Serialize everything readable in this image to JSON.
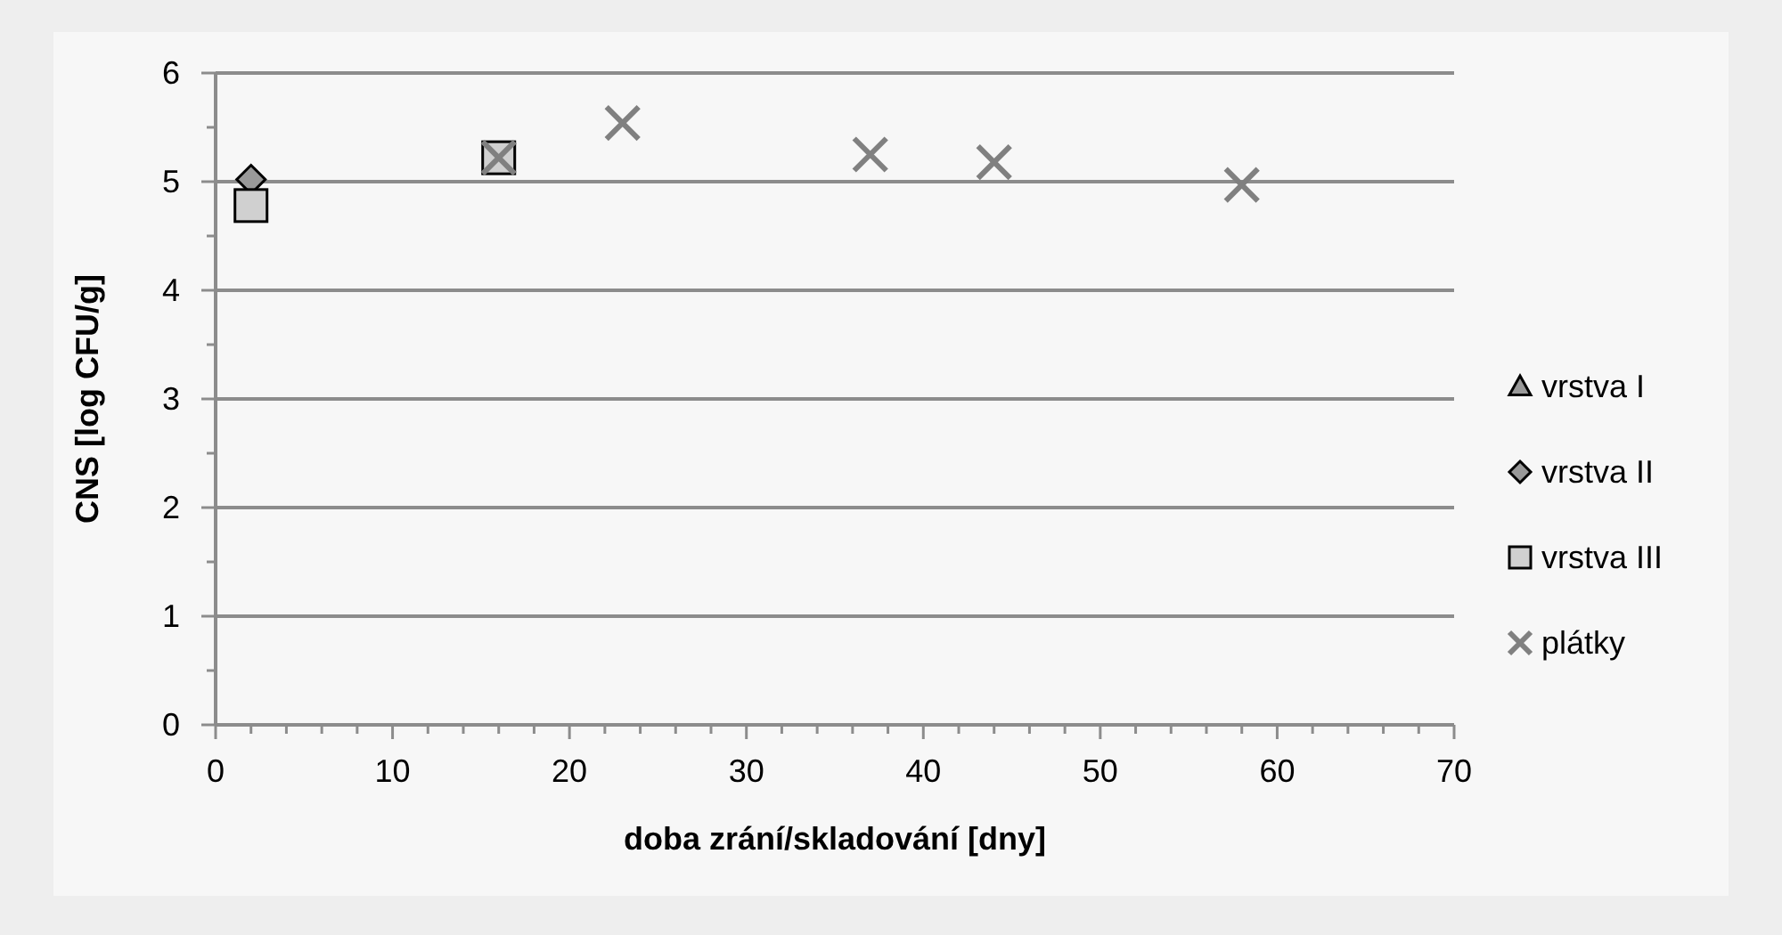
{
  "chart_data": {
    "type": "scatter",
    "xlabel": "doba zrání/skladování [dny]",
    "ylabel": "CNS [log CFU/g]",
    "xlim": [
      0,
      70
    ],
    "xticks": [
      0,
      {
        "value": 2,
        "label": null
      },
      {
        "value": 4,
        "label": null
      },
      {
        "value": 6,
        "label": null
      },
      {
        "value": 8,
        "label": null
      },
      10,
      {
        "value": 12,
        "label": null
      },
      {
        "value": 14,
        "label": null
      },
      {
        "value": 16,
        "label": null
      },
      {
        "value": 18,
        "label": null
      },
      20,
      {
        "value": 22,
        "label": null
      },
      {
        "value": 24,
        "label": null
      },
      {
        "value": 26,
        "label": null
      },
      {
        "value": 28,
        "label": null
      },
      30,
      {
        "value": 32,
        "label": null
      },
      {
        "value": 34,
        "label": null
      },
      {
        "value": 36,
        "label": null
      },
      {
        "value": 38,
        "label": null
      },
      40,
      {
        "value": 42,
        "label": null
      },
      {
        "value": 44,
        "label": null
      },
      {
        "value": 46,
        "label": null
      },
      {
        "value": 48,
        "label": null
      },
      50,
      {
        "value": 52,
        "label": null
      },
      {
        "value": 54,
        "label": null
      },
      {
        "value": 56,
        "label": null
      },
      {
        "value": 58,
        "label": null
      },
      60,
      {
        "value": 62,
        "label": null
      },
      {
        "value": 64,
        "label": null
      },
      {
        "value": 66,
        "label": null
      },
      {
        "value": 68,
        "label": null
      },
      70
    ],
    "ylim": [
      0,
      6
    ],
    "yticks": [
      0,
      {
        "value": 0.5,
        "label": null
      },
      1,
      {
        "value": 1.5,
        "label": null
      },
      2,
      {
        "value": 2.5,
        "label": null
      },
      3,
      {
        "value": 3.5,
        "label": null
      },
      4,
      {
        "value": 4.5,
        "label": null
      },
      5,
      {
        "value": 5.5,
        "label": null
      },
      6
    ],
    "grid": "y",
    "legend": "right",
    "series": [
      {
        "name": "vrstva I",
        "color": "#999999",
        "marker": "triangle"
      },
      {
        "name": "vrstva II",
        "color": "#999999",
        "marker": "diamond",
        "x": [
          2
        ],
        "values": [
          5.02
        ]
      },
      {
        "name": "vrstva III",
        "color": "#d0d0d0",
        "marker": "square",
        "x": [
          2,
          16
        ],
        "values": [
          4.78,
          5.22
        ]
      },
      {
        "name": "plátky",
        "color": "#808080",
        "marker": "cross",
        "x": [
          16,
          23,
          37,
          44,
          58
        ],
        "values": [
          5.22,
          5.54,
          5.25,
          5.18,
          4.97
        ]
      }
    ]
  }
}
